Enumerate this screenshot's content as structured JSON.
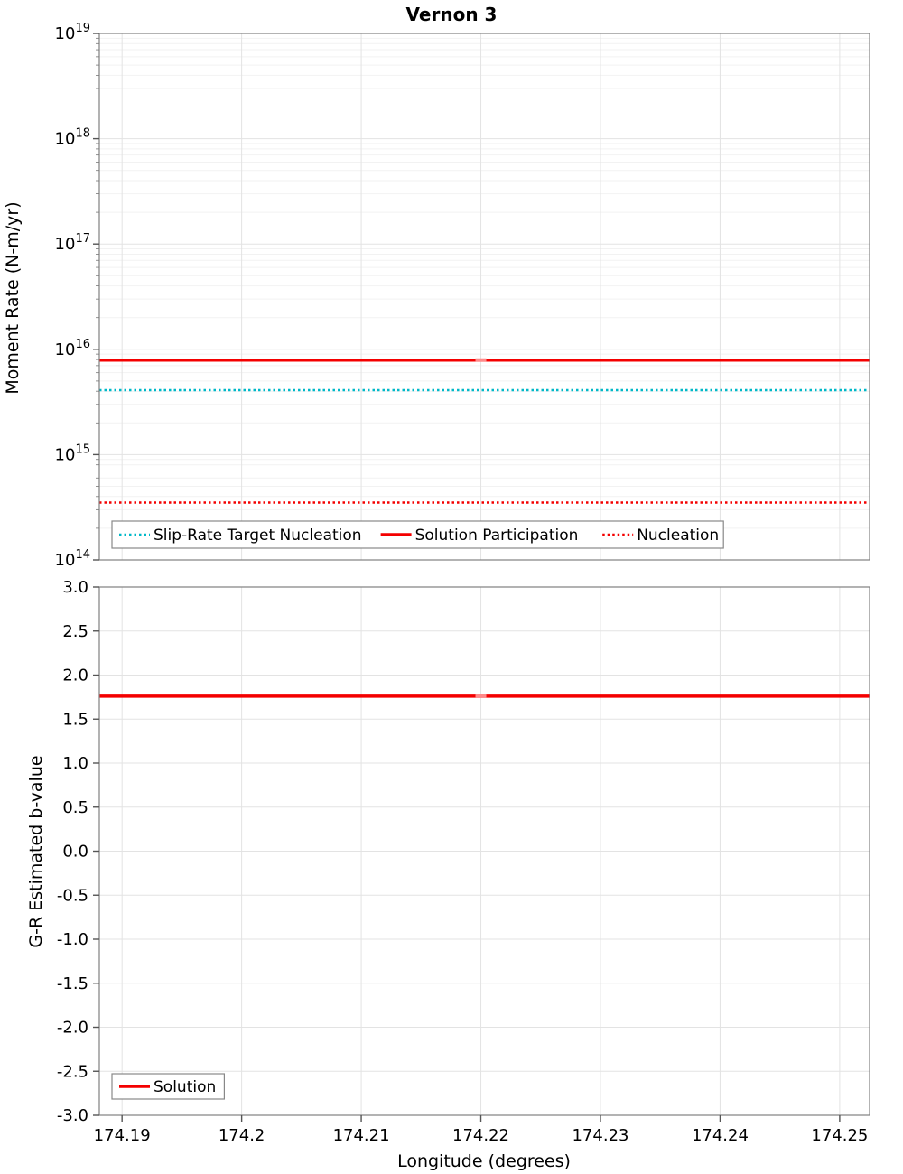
{
  "title": "Vernon 3",
  "xlabel": "Longitude (degrees)",
  "colors": {
    "red": "#f40000",
    "cyan": "#00b8c8",
    "marker_red": "#ff8a8a",
    "grid_major": "#e3e3e3",
    "grid_minor": "#f2f2f2",
    "border": "#808080"
  },
  "chart_data": [
    {
      "type": "line",
      "title": "Vernon 3",
      "ylabel": "Moment Rate (N-m/yr)",
      "yscale": "log",
      "ylim": [
        100000000000000.0,
        1e+19
      ],
      "ytick_exponents": [
        14,
        15,
        16,
        17,
        18,
        19
      ],
      "xlim": [
        174.1881,
        174.2525
      ],
      "xticks": [
        174.19,
        174.2,
        174.21,
        174.22,
        174.23,
        174.24,
        174.25
      ],
      "xtick_labels": [
        "174.19",
        "174.2",
        "174.21",
        "174.22",
        "174.23",
        "174.24",
        "174.25"
      ],
      "show_x_ticks": false,
      "grid": true,
      "legend_position": "bottom-left-inside",
      "series": [
        {
          "name": "Slip-Rate Target Nucleation",
          "color": "#00b8c8",
          "line_style": "dotted",
          "y": 4100000000000000.0
        },
        {
          "name": "Solution Participation",
          "color": "#f40000",
          "line_style": "solid",
          "y": 7900000000000000.0,
          "marker_x": 174.22,
          "marker_color": "#ff8a8a"
        },
        {
          "name": "Nucleation",
          "color": "#f40000",
          "line_style": "dotted",
          "y": 350000000000000.0
        }
      ]
    },
    {
      "type": "line",
      "title": "",
      "ylabel": "G-R Estimated b-value",
      "yscale": "linear",
      "ylim": [
        -3.0,
        3.0
      ],
      "yticks": [
        -3.0,
        -2.5,
        -2.0,
        -1.5,
        -1.0,
        -0.5,
        0.0,
        0.5,
        1.0,
        1.5,
        2.0,
        2.5,
        3.0
      ],
      "ytick_labels": [
        "-3.0",
        "-2.5",
        "-2.0",
        "-1.5",
        "-1.0",
        "-0.5",
        "0.0",
        "0.5",
        "1.0",
        "1.5",
        "2.0",
        "2.5",
        "3.0"
      ],
      "xlim": [
        174.1881,
        174.2525
      ],
      "xticks": [
        174.19,
        174.2,
        174.21,
        174.22,
        174.23,
        174.24,
        174.25
      ],
      "xtick_labels": [
        "174.19",
        "174.2",
        "174.21",
        "174.22",
        "174.23",
        "174.24",
        "174.25"
      ],
      "show_x_ticks": true,
      "grid": true,
      "legend_position": "bottom-left-inside",
      "series": [
        {
          "name": "Solution",
          "color": "#f40000",
          "line_style": "solid",
          "y": 1.76,
          "marker_x": 174.22,
          "marker_color": "#ff8a8a"
        }
      ]
    }
  ]
}
